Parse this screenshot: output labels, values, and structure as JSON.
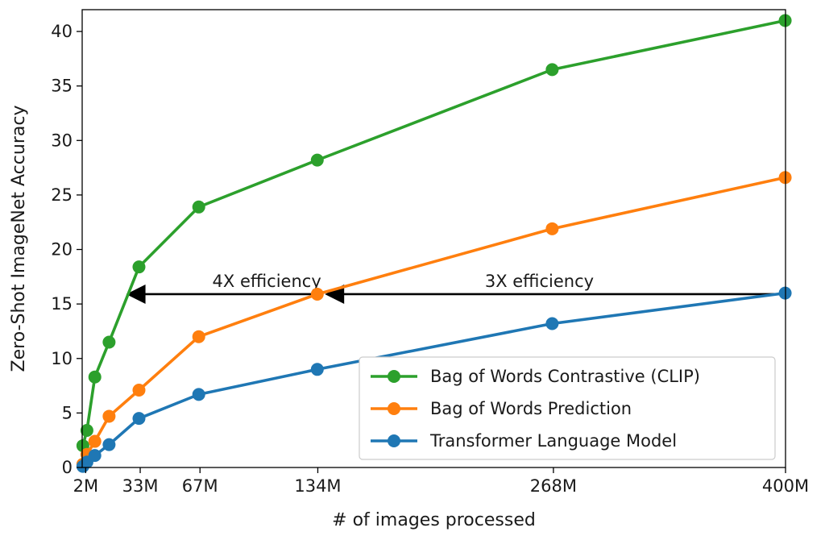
{
  "chart_data": {
    "type": "line",
    "xlabel": "# of images processed",
    "ylabel": "Zero-Shot ImageNet Accuracy",
    "xlim": [
      0,
      400
    ],
    "ylim": [
      0,
      42
    ],
    "x_ticks": [
      {
        "value": 2,
        "label": "2M"
      },
      {
        "value": 33,
        "label": "33M"
      },
      {
        "value": 67,
        "label": "67M"
      },
      {
        "value": 134,
        "label": "134M"
      },
      {
        "value": 268,
        "label": "268M"
      },
      {
        "value": 400,
        "label": "400M"
      }
    ],
    "y_ticks": [
      0,
      5,
      10,
      15,
      20,
      25,
      30,
      35,
      40
    ],
    "grid": false,
    "legend_position": "lower-right",
    "series": [
      {
        "name": "Bag of Words Contrastive (CLIP)",
        "color": "#2ca02c",
        "x": [
          0.4,
          2.7,
          7.2,
          15.3,
          32.3,
          66.3,
          133.7,
          267.3,
          399.8
        ],
        "y": [
          2.0,
          3.4,
          8.3,
          11.5,
          18.4,
          23.9,
          28.2,
          36.5,
          41.0
        ]
      },
      {
        "name": "Bag of Words Prediction",
        "color": "#ff7f0e",
        "x": [
          0.4,
          2.7,
          7.2,
          15.3,
          32.3,
          66.3,
          133.7,
          267.3,
          399.8
        ],
        "y": [
          0.3,
          1.2,
          2.4,
          4.7,
          7.1,
          12.0,
          15.9,
          21.9,
          26.6
        ]
      },
      {
        "name": "Transformer Language Model",
        "color": "#1f77b4",
        "x": [
          0.4,
          2.7,
          7.2,
          15.3,
          32.3,
          66.3,
          133.7,
          267.3,
          399.8
        ],
        "y": [
          0.1,
          0.5,
          1.1,
          2.1,
          4.5,
          6.7,
          9.0,
          13.2,
          16.0
        ]
      }
    ],
    "annotations": [
      {
        "text": "4X efficiency",
        "text_x": 105,
        "from_x": 134,
        "to_x": 25,
        "y": 15.9
      },
      {
        "text": "3X efficiency",
        "text_x": 260,
        "from_x": 400,
        "to_x": 138,
        "y": 15.9
      }
    ]
  }
}
